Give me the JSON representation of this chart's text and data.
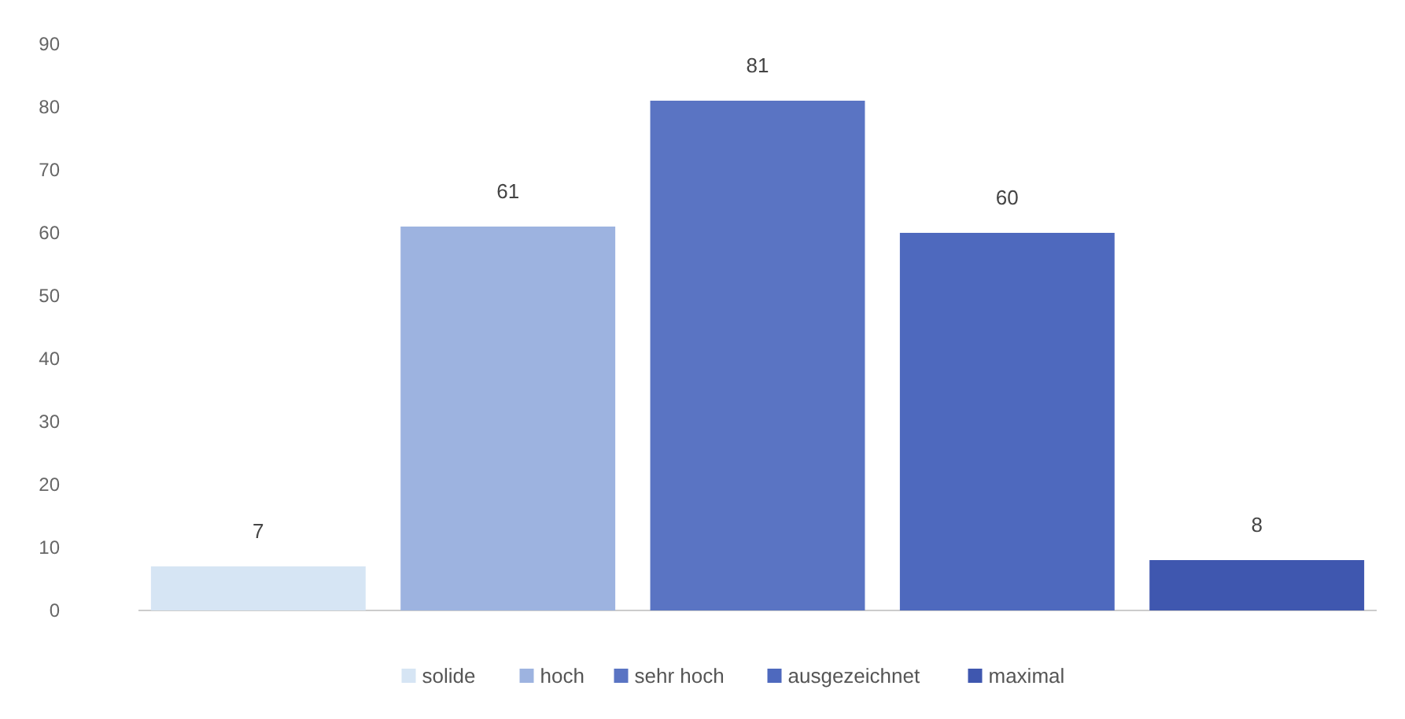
{
  "chart_data": {
    "type": "bar",
    "categories": [
      null,
      null,
      null,
      null,
      null
    ],
    "series": [
      {
        "name": "solide",
        "color": "#d6e5f4",
        "values": [
          7,
          null,
          null,
          null,
          null
        ]
      },
      {
        "name": "hoch",
        "color": "#9db3e0",
        "values": [
          null,
          61,
          null,
          null,
          null
        ]
      },
      {
        "name": "sehr hoch",
        "color": "#5a74c3",
        "values": [
          null,
          null,
          81,
          null,
          null
        ]
      },
      {
        "name": "ausgezeichnet",
        "color": "#4e69be",
        "values": [
          null,
          null,
          null,
          60,
          null
        ]
      },
      {
        "name": "maximal",
        "color": "#3f57af",
        "values": [
          null,
          null,
          null,
          null,
          8
        ]
      }
    ],
    "stacked": true,
    "ylim": [
      0,
      90
    ],
    "yticks": [
      0,
      10,
      20,
      30,
      40,
      50,
      60,
      70,
      80,
      90
    ],
    "grid": false,
    "data_labels": true,
    "legend": "bottom",
    "tick_labels": "y"
  }
}
